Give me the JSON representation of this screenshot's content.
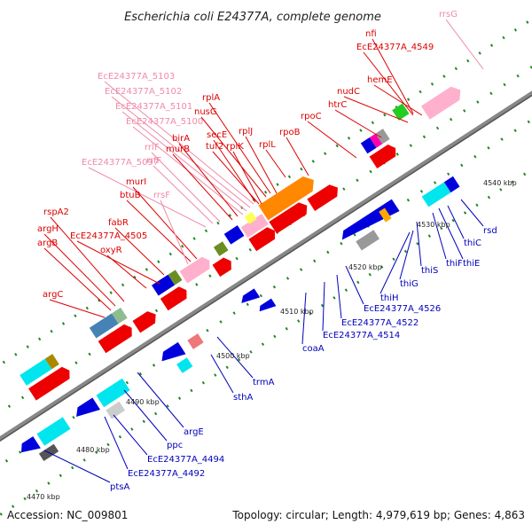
{
  "title": "Escherichia coli E24377A, complete genome",
  "footer": {
    "accession": "Accession: NC_009801",
    "summary": "Topology: circular; Length: 4,979,619 bp; Genes: 4,863"
  },
  "colors": {
    "red_label": "#dd0000",
    "pink_label": "#f08aa8",
    "blue_label": "#0000bb",
    "backbone": "#888888",
    "dots": "#228822"
  },
  "ticks": [
    "4470 kbp",
    "4480 kbp",
    "4490 kbp",
    "4500 kbp",
    "4510 kbp",
    "4520 kbp",
    "4530 kbp",
    "4540 kbp"
  ],
  "top_labels": [
    {
      "text": "rrsG",
      "tone": "pink"
    },
    {
      "text": "nfi",
      "tone": "red"
    },
    {
      "text": "EcE24377A_4549",
      "tone": "red"
    },
    {
      "text": "hemE",
      "tone": "red"
    },
    {
      "text": "nudC",
      "tone": "red"
    },
    {
      "text": "htrC",
      "tone": "red"
    },
    {
      "text": "rpoC",
      "tone": "red"
    },
    {
      "text": "rpoB",
      "tone": "red"
    },
    {
      "text": "rplL",
      "tone": "red"
    },
    {
      "text": "rplJ",
      "tone": "red"
    },
    {
      "text": "rplA",
      "tone": "red"
    },
    {
      "text": "nusG",
      "tone": "red"
    },
    {
      "text": "secE",
      "tone": "red"
    },
    {
      "text": "tuf2",
      "tone": "red"
    },
    {
      "text": "rplK",
      "tone": "red"
    },
    {
      "text": "EcE24377A_5103",
      "tone": "pink"
    },
    {
      "text": "EcE24377A_5102",
      "tone": "pink"
    },
    {
      "text": "EcE24377A_5101",
      "tone": "pink"
    },
    {
      "text": "EcE24377A_5100",
      "tone": "pink"
    },
    {
      "text": "birA",
      "tone": "red"
    },
    {
      "text": "murB",
      "tone": "red"
    },
    {
      "text": "rrlF",
      "tone": "pink"
    },
    {
      "text": "rrfF",
      "tone": "pink"
    },
    {
      "text": "EcE24377A_5097",
      "tone": "pink"
    },
    {
      "text": "murI",
      "tone": "red"
    },
    {
      "text": "btuB",
      "tone": "red"
    },
    {
      "text": "rrsF",
      "tone": "pink"
    },
    {
      "text": "rspA2",
      "tone": "red"
    },
    {
      "text": "argH",
      "tone": "red"
    },
    {
      "text": "argB",
      "tone": "red"
    },
    {
      "text": "fabR",
      "tone": "red"
    },
    {
      "text": "EcE24377A_4505",
      "tone": "red"
    },
    {
      "text": "oxyR",
      "tone": "red"
    },
    {
      "text": "argC",
      "tone": "red"
    }
  ],
  "bottom_labels": [
    {
      "text": "rsd"
    },
    {
      "text": "thiC"
    },
    {
      "text": "thiE"
    },
    {
      "text": "thiF"
    },
    {
      "text": "thiS"
    },
    {
      "text": "thiG"
    },
    {
      "text": "thiH"
    },
    {
      "text": "EcE24377A_4526"
    },
    {
      "text": "EcE24377A_4522"
    },
    {
      "text": "EcE24377A_4514"
    },
    {
      "text": "coaA"
    },
    {
      "text": "trmA"
    },
    {
      "text": "sthA"
    },
    {
      "text": "argE"
    },
    {
      "text": "ppc"
    },
    {
      "text": "EcE24377A_4494"
    },
    {
      "text": "EcE24377A_4492"
    },
    {
      "text": "ptsA"
    }
  ]
}
